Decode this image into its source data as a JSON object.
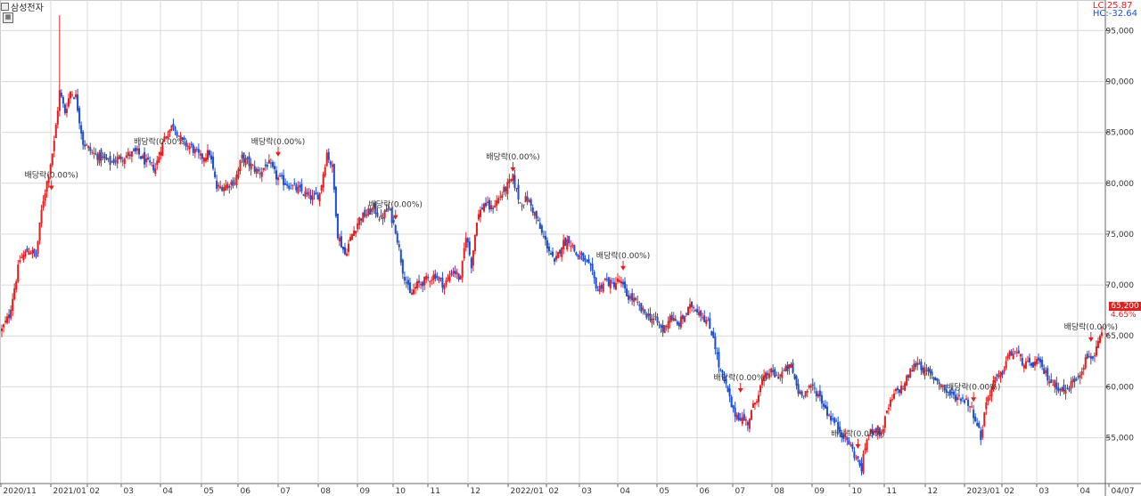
{
  "header": {
    "symbol": "삼성전자",
    "lc_label": "LC:25.87",
    "hc_label": "HC:-32.64",
    "last_price": "65,200",
    "last_change": "4.65%"
  },
  "chart_data": {
    "type": "candlestick",
    "ylim": [
      50500,
      98000
    ],
    "y_ticks": [
      {
        "value": 95000,
        "label": "95,000"
      },
      {
        "value": 90000,
        "label": "90,000"
      },
      {
        "value": 85000,
        "label": "85,000"
      },
      {
        "value": 80000,
        "label": "80,000"
      },
      {
        "value": 75000,
        "label": "75,000"
      },
      {
        "value": 70000,
        "label": "70,000"
      },
      {
        "value": 65000,
        "label": "65,000"
      },
      {
        "value": 60000,
        "label": "60,000"
      },
      {
        "value": 55000,
        "label": "55,000"
      }
    ],
    "x_ticks": [
      "2020/11",
      "2021/01",
      "02",
      "03",
      "04",
      "05",
      "06",
      "07",
      "08",
      "09",
      "10",
      "11",
      "12",
      "2022/01",
      "02",
      "03",
      "04",
      "05",
      "06",
      "07",
      "08",
      "09",
      "10",
      "11",
      "12",
      "2023/01",
      "02",
      "03",
      "04",
      "04/07"
    ],
    "price_path": [
      {
        "i": 0,
        "v": 65600
      },
      {
        "i": 8,
        "v": 67000
      },
      {
        "i": 20,
        "v": 72500
      },
      {
        "i": 30,
        "v": 73500
      },
      {
        "i": 38,
        "v": 72800
      },
      {
        "i": 45,
        "v": 78000
      },
      {
        "i": 52,
        "v": 81000
      },
      {
        "i": 58,
        "v": 84000
      },
      {
        "i": 64,
        "v": 89000
      },
      {
        "i": 70,
        "v": 87000
      },
      {
        "i": 76,
        "v": 89000
      },
      {
        "i": 82,
        "v": 88500
      },
      {
        "i": 90,
        "v": 84000
      },
      {
        "i": 100,
        "v": 83000
      },
      {
        "i": 110,
        "v": 82500
      },
      {
        "i": 120,
        "v": 82000
      },
      {
        "i": 130,
        "v": 82500
      },
      {
        "i": 140,
        "v": 82800
      },
      {
        "i": 150,
        "v": 83000
      },
      {
        "i": 160,
        "v": 82000
      },
      {
        "i": 170,
        "v": 81500
      },
      {
        "i": 180,
        "v": 84500
      },
      {
        "i": 190,
        "v": 85800
      },
      {
        "i": 200,
        "v": 84000
      },
      {
        "i": 210,
        "v": 83500
      },
      {
        "i": 220,
        "v": 82500
      },
      {
        "i": 230,
        "v": 83000
      },
      {
        "i": 238,
        "v": 79500
      },
      {
        "i": 248,
        "v": 79800
      },
      {
        "i": 258,
        "v": 80200
      },
      {
        "i": 266,
        "v": 82500
      },
      {
        "i": 275,
        "v": 81800
      },
      {
        "i": 285,
        "v": 81000
      },
      {
        "i": 295,
        "v": 82000
      },
      {
        "i": 305,
        "v": 80500
      },
      {
        "i": 315,
        "v": 80000
      },
      {
        "i": 325,
        "v": 79500
      },
      {
        "i": 335,
        "v": 79000
      },
      {
        "i": 345,
        "v": 78500
      },
      {
        "i": 352,
        "v": 79000
      },
      {
        "i": 360,
        "v": 83000
      },
      {
        "i": 366,
        "v": 81500
      },
      {
        "i": 372,
        "v": 75000
      },
      {
        "i": 380,
        "v": 73000
      },
      {
        "i": 388,
        "v": 75000
      },
      {
        "i": 396,
        "v": 76500
      },
      {
        "i": 404,
        "v": 77000
      },
      {
        "i": 412,
        "v": 77500
      },
      {
        "i": 420,
        "v": 76500
      },
      {
        "i": 428,
        "v": 77500
      },
      {
        "i": 436,
        "v": 75500
      },
      {
        "i": 444,
        "v": 71500
      },
      {
        "i": 452,
        "v": 69000
      },
      {
        "i": 460,
        "v": 70000
      },
      {
        "i": 470,
        "v": 70500
      },
      {
        "i": 480,
        "v": 71000
      },
      {
        "i": 490,
        "v": 70000
      },
      {
        "i": 500,
        "v": 71500
      },
      {
        "i": 508,
        "v": 70500
      },
      {
        "i": 514,
        "v": 75000
      },
      {
        "i": 520,
        "v": 72000
      },
      {
        "i": 526,
        "v": 76500
      },
      {
        "i": 534,
        "v": 78000
      },
      {
        "i": 542,
        "v": 77500
      },
      {
        "i": 550,
        "v": 78500
      },
      {
        "i": 558,
        "v": 79500
      },
      {
        "i": 566,
        "v": 80500
      },
      {
        "i": 574,
        "v": 78000
      },
      {
        "i": 582,
        "v": 78500
      },
      {
        "i": 590,
        "v": 77000
      },
      {
        "i": 598,
        "v": 75000
      },
      {
        "i": 606,
        "v": 73500
      },
      {
        "i": 612,
        "v": 72000
      },
      {
        "i": 620,
        "v": 74000
      },
      {
        "i": 628,
        "v": 74500
      },
      {
        "i": 636,
        "v": 73000
      },
      {
        "i": 644,
        "v": 72500
      },
      {
        "i": 652,
        "v": 71500
      },
      {
        "i": 660,
        "v": 69500
      },
      {
        "i": 668,
        "v": 70500
      },
      {
        "i": 676,
        "v": 70000
      },
      {
        "i": 684,
        "v": 70500
      },
      {
        "i": 692,
        "v": 69000
      },
      {
        "i": 700,
        "v": 68500
      },
      {
        "i": 708,
        "v": 67500
      },
      {
        "i": 716,
        "v": 67000
      },
      {
        "i": 724,
        "v": 66500
      },
      {
        "i": 732,
        "v": 65500
      },
      {
        "i": 740,
        "v": 67000
      },
      {
        "i": 748,
        "v": 66000
      },
      {
        "i": 756,
        "v": 67000
      },
      {
        "i": 764,
        "v": 68000
      },
      {
        "i": 772,
        "v": 67500
      },
      {
        "i": 780,
        "v": 66500
      },
      {
        "i": 788,
        "v": 65000
      },
      {
        "i": 794,
        "v": 62000
      },
      {
        "i": 802,
        "v": 60000
      },
      {
        "i": 810,
        "v": 57500
      },
      {
        "i": 818,
        "v": 57000
      },
      {
        "i": 826,
        "v": 56500
      },
      {
        "i": 834,
        "v": 58500
      },
      {
        "i": 842,
        "v": 60500
      },
      {
        "i": 850,
        "v": 61500
      },
      {
        "i": 858,
        "v": 61000
      },
      {
        "i": 866,
        "v": 61500
      },
      {
        "i": 874,
        "v": 62000
      },
      {
        "i": 882,
        "v": 59500
      },
      {
        "i": 890,
        "v": 59500
      },
      {
        "i": 898,
        "v": 60000
      },
      {
        "i": 906,
        "v": 59000
      },
      {
        "i": 914,
        "v": 57500
      },
      {
        "i": 922,
        "v": 56500
      },
      {
        "i": 930,
        "v": 55500
      },
      {
        "i": 938,
        "v": 54500
      },
      {
        "i": 946,
        "v": 53000
      },
      {
        "i": 952,
        "v": 52000
      },
      {
        "i": 958,
        "v": 55000
      },
      {
        "i": 966,
        "v": 56000
      },
      {
        "i": 974,
        "v": 55500
      },
      {
        "i": 982,
        "v": 58000
      },
      {
        "i": 990,
        "v": 59500
      },
      {
        "i": 998,
        "v": 60000
      },
      {
        "i": 1006,
        "v": 61500
      },
      {
        "i": 1014,
        "v": 62500
      },
      {
        "i": 1022,
        "v": 61500
      },
      {
        "i": 1030,
        "v": 61000
      },
      {
        "i": 1038,
        "v": 60500
      },
      {
        "i": 1046,
        "v": 59500
      },
      {
        "i": 1054,
        "v": 59000
      },
      {
        "i": 1062,
        "v": 59000
      },
      {
        "i": 1070,
        "v": 58500
      },
      {
        "i": 1078,
        "v": 57000
      },
      {
        "i": 1084,
        "v": 55000
      },
      {
        "i": 1090,
        "v": 58500
      },
      {
        "i": 1098,
        "v": 60500
      },
      {
        "i": 1106,
        "v": 61000
      },
      {
        "i": 1114,
        "v": 63000
      },
      {
        "i": 1122,
        "v": 63500
      },
      {
        "i": 1130,
        "v": 62500
      },
      {
        "i": 1138,
        "v": 62000
      },
      {
        "i": 1146,
        "v": 62500
      },
      {
        "i": 1154,
        "v": 61500
      },
      {
        "i": 1162,
        "v": 60500
      },
      {
        "i": 1170,
        "v": 60000
      },
      {
        "i": 1178,
        "v": 59500
      },
      {
        "i": 1186,
        "v": 60500
      },
      {
        "i": 1194,
        "v": 61500
      },
      {
        "i": 1202,
        "v": 63000
      },
      {
        "i": 1210,
        "v": 63000
      },
      {
        "i": 1218,
        "v": 65200
      }
    ],
    "annotations": [
      {
        "i": 55,
        "v": 79500,
        "label": "배당락(0.00%)"
      },
      {
        "i": 176,
        "v": 82800,
        "label": "배당락(0.00%)"
      },
      {
        "i": 306,
        "v": 82800,
        "label": "배당락(0.00%)"
      },
      {
        "i": 436,
        "v": 76600,
        "label": "배당락(0.00%)"
      },
      {
        "i": 566,
        "v": 81300,
        "label": "배당락(0.00%)"
      },
      {
        "i": 688,
        "v": 71600,
        "label": "배당락(0.00%)"
      },
      {
        "i": 818,
        "v": 59600,
        "label": "배당락(0.00%)"
      },
      {
        "i": 948,
        "v": 54100,
        "label": "배당락(0.00%)"
      },
      {
        "i": 1076,
        "v": 58700,
        "label": "배당락(0.00%)"
      },
      {
        "i": 1206,
        "v": 64600,
        "label": "배당락(0.00%)"
      }
    ],
    "colors": {
      "up": "#e02020",
      "down": "#1e4fd0",
      "grid": "#d9d9d9"
    }
  }
}
